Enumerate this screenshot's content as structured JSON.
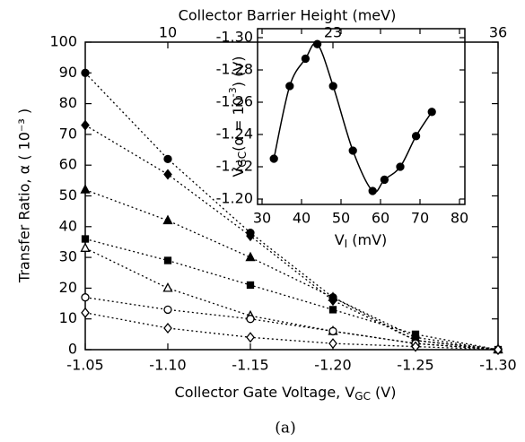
{
  "chart_data": [
    {
      "type": "line",
      "top_title": "Collector Barrier Height (meV)",
      "top_xlim": [
        3.5,
        36
      ],
      "top_xticks": [
        10,
        23,
        36
      ],
      "ylabel": "Transfer Ratio, α  ( 10⁻³ )",
      "xlabel": [
        "Collector Gate Voltage, V",
        "GC",
        " (V)"
      ],
      "caption": "(a)",
      "x": [
        -1.05,
        -1.1,
        -1.15,
        -1.2,
        -1.25,
        -1.3
      ],
      "xlim": [
        -1.05,
        -1.3
      ],
      "xticks": [
        -1.05,
        {
          "value": -1.1,
          "label": "-1.10"
        },
        -1.15,
        {
          "value": -1.2,
          "label": "-1.20"
        },
        -1.25,
        {
          "value": -1.3,
          "label": "-1.30"
        }
      ],
      "ylim": [
        0,
        100
      ],
      "yticks": [
        0,
        10,
        20,
        30,
        40,
        50,
        60,
        70,
        80,
        90,
        100
      ],
      "series": [
        {
          "marker": "circle",
          "filled": true,
          "color": "#000",
          "values": [
            90,
            62,
            38,
            17,
            4,
            0
          ]
        },
        {
          "marker": "diamond",
          "filled": true,
          "color": "#000",
          "values": [
            73,
            57,
            37,
            16,
            3,
            0
          ]
        },
        {
          "marker": "triangle",
          "filled": true,
          "color": "#000",
          "values": [
            52,
            42,
            30,
            17,
            3,
            0
          ]
        },
        {
          "marker": "square",
          "filled": true,
          "color": "#000",
          "values": [
            36,
            29,
            21,
            13,
            5,
            0
          ]
        },
        {
          "marker": "triangle",
          "filled": false,
          "color": "#000",
          "values": [
            33,
            20,
            11,
            6,
            2,
            0
          ]
        },
        {
          "marker": "circle",
          "filled": false,
          "color": "#000",
          "values": [
            17,
            13,
            10,
            6,
            2,
            0
          ]
        },
        {
          "marker": "diamond",
          "filled": false,
          "color": "#000",
          "values": [
            12,
            7,
            4,
            2,
            1,
            0
          ]
        }
      ]
    },
    {
      "type": "scatter",
      "ylabel": [
        "V",
        "GC",
        "(α = 10",
        "-3",
        ")  (V)"
      ],
      "xlabel": [
        "V",
        "I",
        " (mV)"
      ],
      "x": [
        33,
        37,
        41,
        44,
        48,
        53,
        58,
        61,
        65,
        69,
        73
      ],
      "values": [
        -1.225,
        -1.27,
        -1.287,
        -1.296,
        -1.27,
        -1.23,
        -1.205,
        -1.212,
        -1.22,
        -1.239,
        -1.254
      ],
      "xlim": [
        30,
        80
      ],
      "xticks": [
        30,
        40,
        50,
        60,
        70,
        80
      ],
      "ylim": [
        -1.2,
        -1.3
      ],
      "yticks": [
        {
          "value": -1.2,
          "label": "-1.20"
        },
        -1.22,
        -1.24,
        -1.26,
        -1.28,
        {
          "value": -1.3,
          "label": "-1.30"
        }
      ],
      "color": "#000"
    }
  ]
}
